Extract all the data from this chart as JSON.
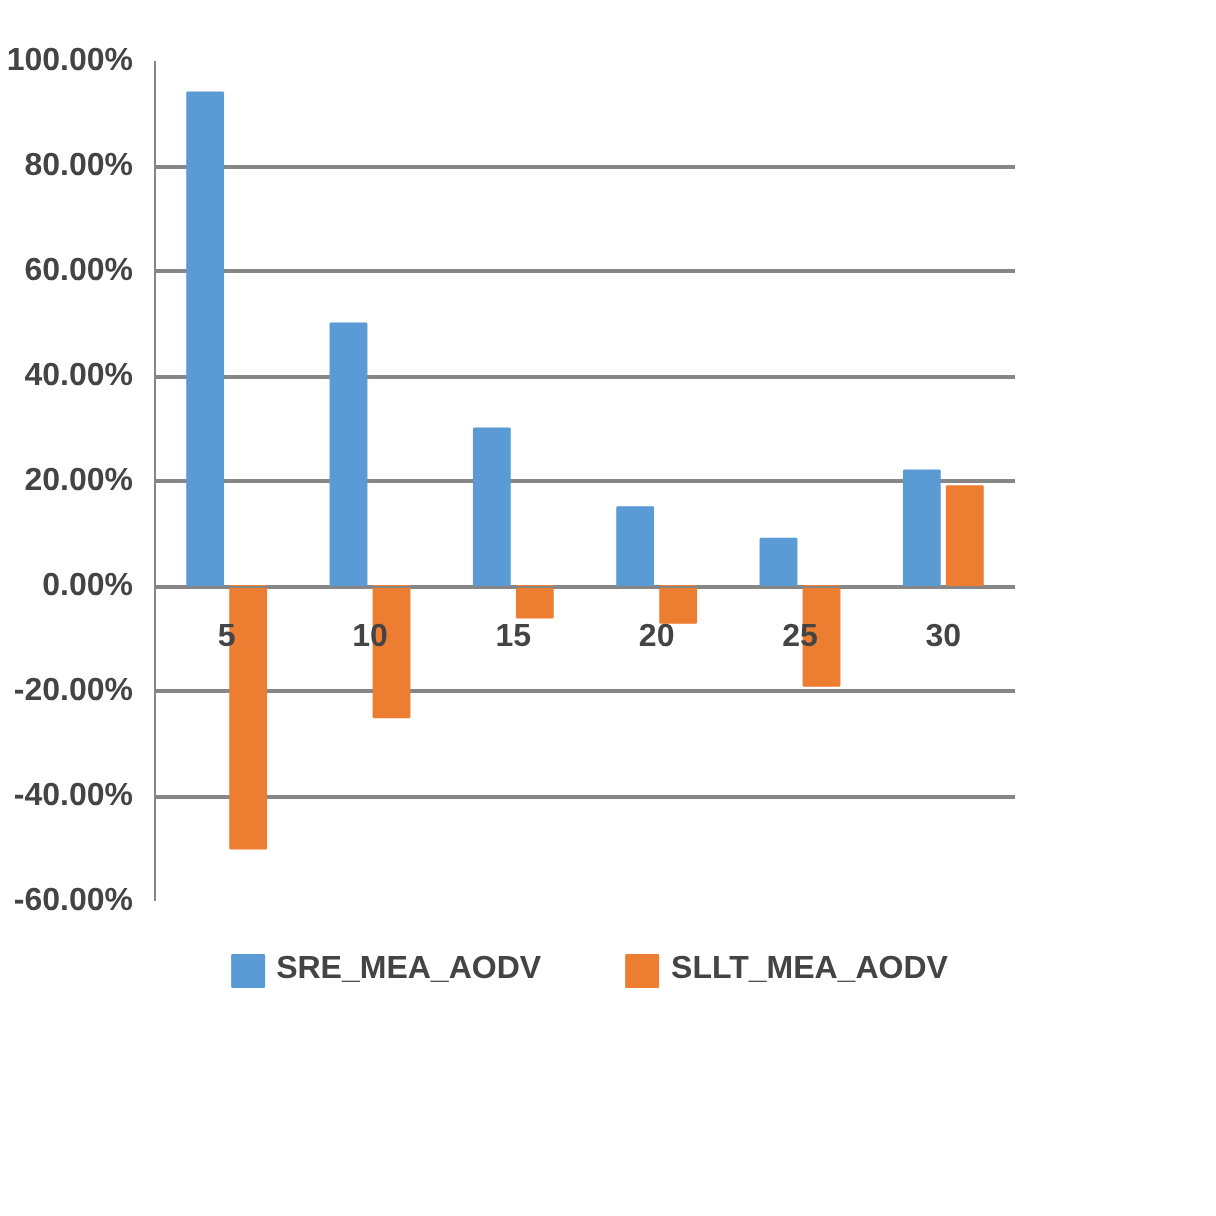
{
  "chart_data": {
    "type": "bar",
    "categories": [
      "5",
      "10",
      "15",
      "20",
      "25",
      "30"
    ],
    "series": [
      {
        "name": "SRE_MEA_AODV",
        "color": "#5b9bd5",
        "values": [
          94,
          50,
          30,
          15,
          9,
          22
        ]
      },
      {
        "name": "SLLT_MEA_AODV",
        "color": "#ed7d31",
        "values": [
          -50,
          -25,
          -6,
          -7,
          -19,
          19
        ]
      }
    ],
    "ylim": [
      -60,
      100
    ],
    "yticks": [
      {
        "value": -60,
        "label": "-60.00%"
      },
      {
        "value": -40,
        "label": "-40.00%"
      },
      {
        "value": -20,
        "label": "-20.00%"
      },
      {
        "value": 0,
        "label": "0.00%"
      },
      {
        "value": 20,
        "label": "20.00%"
      },
      {
        "value": 40,
        "label": "40.00%"
      },
      {
        "value": 60,
        "label": "60.00%"
      },
      {
        "value": 80,
        "label": "80.00%"
      },
      {
        "value": 100,
        "label": "100.00%"
      }
    ],
    "grid": "y",
    "legend": "bottom"
  }
}
